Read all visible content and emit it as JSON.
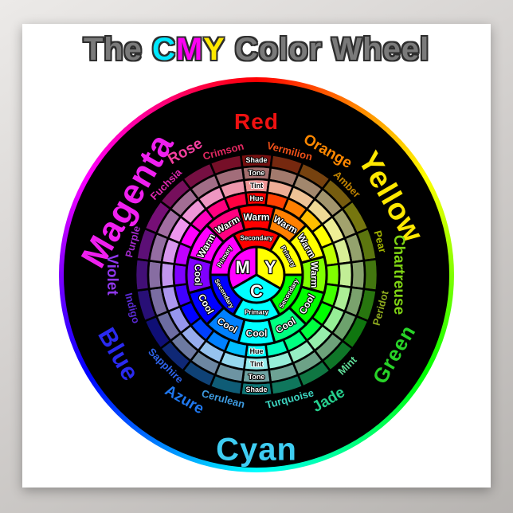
{
  "title": {
    "word1": "The",
    "c": "C",
    "m": "M",
    "y": "Y",
    "word2": "Color Wheel",
    "gray_color": "#7a7a7a",
    "cyan_color": "#00e8ff",
    "magenta_color": "#ff00f4",
    "yellow_color": "#ffe800"
  },
  "wheel": {
    "background": "#000000",
    "rim_colors": [
      "#ff0000",
      "#ffff00",
      "#00ff00",
      "#00ffff",
      "#0000ff",
      "#ff00ff",
      "#ff0000"
    ],
    "center_letters": [
      {
        "label": "M",
        "angle": 300,
        "color": "#ff00ff"
      },
      {
        "label": "Y",
        "angle": 60,
        "color": "#ffe800"
      },
      {
        "label": "C",
        "angle": 180,
        "color": "#00e5ff"
      }
    ],
    "primary_secondary_ring": [
      {
        "label": "Secondary",
        "angle": 0
      },
      {
        "label": "Primary",
        "angle": 60
      },
      {
        "label": "Secondary",
        "angle": 120
      },
      {
        "label": "Primary",
        "angle": 180
      },
      {
        "label": "Secondary",
        "angle": 240
      },
      {
        "label": "Primary",
        "angle": 300
      }
    ],
    "warm_cool_ring": [
      {
        "label": "Warm",
        "angle": 0
      },
      {
        "label": "Warm",
        "angle": 30
      },
      {
        "label": "Warm",
        "angle": 60
      },
      {
        "label": "Warm",
        "angle": 90
      },
      {
        "label": "Cool",
        "angle": 120
      },
      {
        "label": "Cool",
        "angle": 150
      },
      {
        "label": "Cool",
        "angle": 180
      },
      {
        "label": "Cool",
        "angle": 210
      },
      {
        "label": "Cool",
        "angle": 240
      },
      {
        "label": "Cool",
        "angle": 270
      },
      {
        "label": "Warm",
        "angle": 300
      },
      {
        "label": "Warm",
        "angle": 330
      }
    ],
    "variant_rings": [
      {
        "name": "Hue",
        "text_top": "#ffffff",
        "text_bottom": "#101010"
      },
      {
        "name": "Tint",
        "text_top": "#101010",
        "text_bottom": "#101010"
      },
      {
        "name": "Tone",
        "text_top": "#ffffff",
        "text_bottom": "#ffffff"
      },
      {
        "name": "Shade",
        "text_top": "#ffffff",
        "text_bottom": "#ffffff"
      }
    ],
    "hue_names": [
      {
        "name": "Red",
        "angle": 0,
        "size": "large",
        "color": "#ee1111"
      },
      {
        "name": "Vermilion",
        "angle": 15,
        "size": "small",
        "color": "#ee5018"
      },
      {
        "name": "Orange",
        "angle": 30,
        "size": "medium",
        "color": "#ff8800"
      },
      {
        "name": "Amber",
        "angle": 45,
        "size": "small",
        "color": "#c08300"
      },
      {
        "name": "Yellow",
        "angle": 60,
        "size": "large",
        "color": "#ffe800"
      },
      {
        "name": "Pear",
        "angle": 75,
        "size": "small",
        "color": "#a4b400"
      },
      {
        "name": "Chartreuse",
        "angle": 90,
        "size": "medium",
        "color": "#7fd414"
      },
      {
        "name": "Peridot",
        "angle": 105,
        "size": "small",
        "color": "#8ca81e"
      },
      {
        "name": "Green",
        "angle": 120,
        "size": "large",
        "color": "#28d428"
      },
      {
        "name": "Mint",
        "angle": 135,
        "size": "small",
        "color": "#5fdd99"
      },
      {
        "name": "Jade",
        "angle": 150,
        "size": "medium",
        "color": "#26d08e"
      },
      {
        "name": "Turquoise",
        "angle": 165,
        "size": "small",
        "color": "#3cd4c0"
      },
      {
        "name": "Cyan",
        "angle": 180,
        "size": "large",
        "color": "#3ecdf2"
      },
      {
        "name": "Cerulean",
        "angle": 195,
        "size": "small",
        "color": "#3e9be0"
      },
      {
        "name": "Azure",
        "angle": 210,
        "size": "medium",
        "color": "#1f78f0"
      },
      {
        "name": "Sapphire",
        "angle": 225,
        "size": "small",
        "color": "#2e63e8"
      },
      {
        "name": "Blue",
        "angle": 240,
        "size": "large",
        "color": "#2a2af0"
      },
      {
        "name": "Indigo",
        "angle": 255,
        "size": "small",
        "color": "#5a2ad5"
      },
      {
        "name": "Violet",
        "angle": 270,
        "size": "medium",
        "color": "#9137ee"
      },
      {
        "name": "Purple",
        "angle": 285,
        "size": "small",
        "color": "#a029c9"
      },
      {
        "name": "Magenta",
        "angle": 300,
        "size": "large",
        "color": "#f020f0"
      },
      {
        "name": "Fuchsia",
        "angle": 315,
        "size": "small",
        "color": "#e028b0"
      },
      {
        "name": "Rose",
        "angle": 330,
        "size": "medium",
        "color": "#f53fa0"
      },
      {
        "name": "Crimson",
        "angle": 345,
        "size": "small",
        "color": "#e02860"
      }
    ]
  },
  "color_system": {
    "hue": {
      "s": 100,
      "l": 50
    },
    "tint": {
      "s": 72,
      "l": 76
    },
    "tone": {
      "s": 22,
      "l": 53
    },
    "shade": {
      "s": 78,
      "l": 26
    }
  }
}
